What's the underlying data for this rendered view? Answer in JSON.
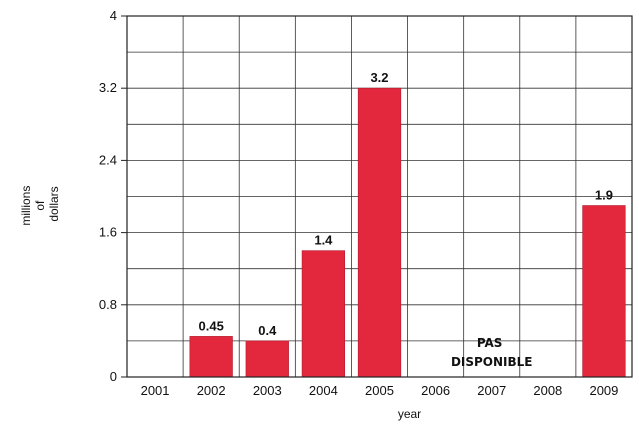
{
  "chart_data": {
    "type": "bar",
    "title": "",
    "xlabel": "year",
    "ylabel": [
      "millions",
      "of",
      "dollars"
    ],
    "categories": [
      "2001",
      "2002",
      "2003",
      "2004",
      "2005",
      "2006",
      "2007",
      "2008",
      "2009"
    ],
    "values": [
      null,
      0.45,
      0.4,
      1.4,
      3.2,
      null,
      null,
      null,
      1.9
    ],
    "data_labels": [
      "",
      "0.45",
      "0.4",
      "1.4",
      "3.2",
      "",
      "",
      "",
      "1.9"
    ],
    "y_ticks": [
      "0",
      "0.8",
      "1.6",
      "2.4",
      "3.2",
      "4"
    ],
    "ylim": [
      0,
      4
    ],
    "grid": true,
    "legend": "none",
    "annotation": [
      "PAS",
      "DISPONIBLE"
    ],
    "bar_color": "#e3283e"
  }
}
